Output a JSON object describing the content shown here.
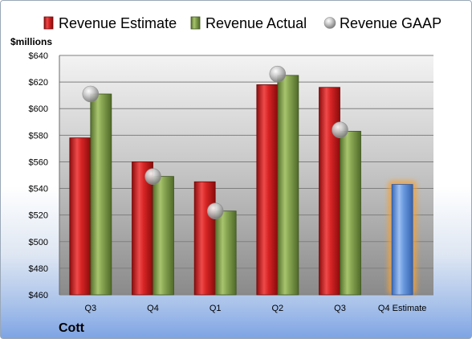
{
  "chart_data": {
    "type": "bar",
    "title": "Cott",
    "ylabel": "$millions",
    "ylim": [
      460,
      640
    ],
    "yticks": [
      460,
      480,
      500,
      520,
      540,
      560,
      580,
      600,
      620,
      640
    ],
    "ytick_labels": [
      "$460",
      "$480",
      "$500",
      "$520",
      "$540",
      "$560",
      "$580",
      "$600",
      "$620",
      "$640"
    ],
    "categories": [
      "Q3",
      "Q4",
      "Q1",
      "Q2",
      "Q3",
      "Q4 Estimate"
    ],
    "legend_position": "top",
    "grid": true,
    "series": [
      {
        "name": "Revenue Estimate",
        "kind": "bar",
        "color": "#d02020",
        "values": [
          578,
          560,
          545,
          618,
          616,
          543
        ]
      },
      {
        "name": "Revenue Actual",
        "kind": "bar",
        "color": "#7fa04a",
        "values": [
          611,
          549,
          523,
          625,
          583,
          null
        ]
      },
      {
        "name": "Revenue GAAP",
        "kind": "point",
        "color": "#b8b8b8",
        "values": [
          611,
          549,
          523,
          626,
          584,
          null
        ]
      }
    ],
    "highlight": {
      "category_index": 5,
      "color": "#6c9be0",
      "glow": "#f2a23a"
    }
  }
}
